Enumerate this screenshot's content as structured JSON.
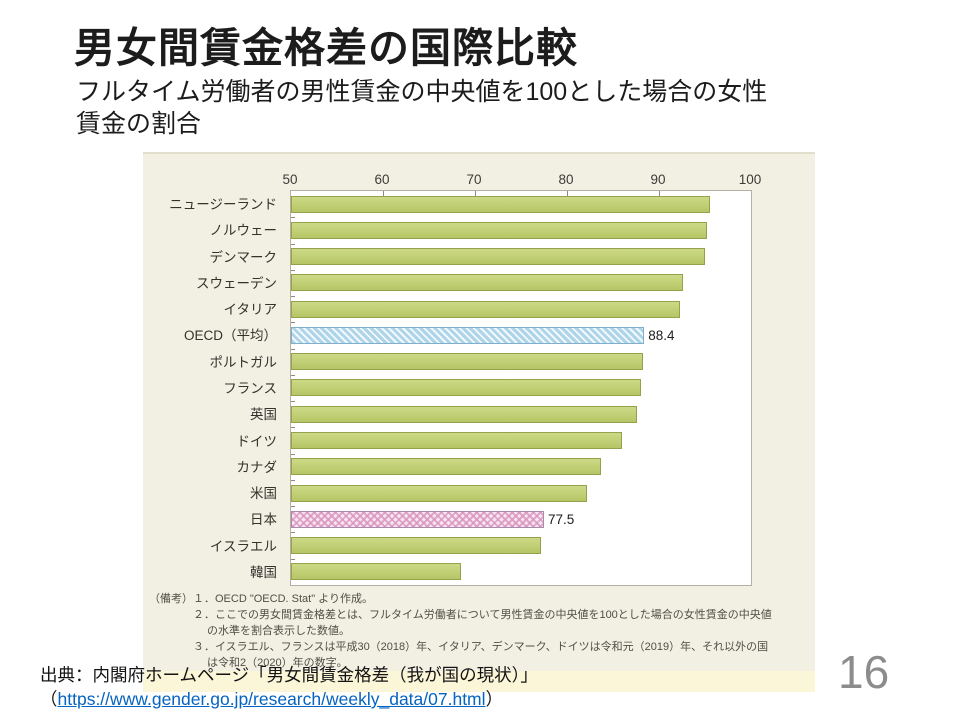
{
  "header": {
    "title": "男女間賃金格差の国際比較",
    "subtitle_line1": "フルタイム労働者の男性賃金の中央値を100とした場合の女性",
    "subtitle_line2": "賃金の割合"
  },
  "chart_data": {
    "type": "bar",
    "orientation": "horizontal",
    "title": "",
    "xlabel": "",
    "ylabel": "",
    "xlim": [
      50,
      100
    ],
    "x_ticks": [
      50,
      60,
      70,
      80,
      90,
      100
    ],
    "grid": false,
    "legend": "none",
    "items": [
      {
        "label": "ニュージーランド",
        "value": 95.5,
        "style": "default"
      },
      {
        "label": "ノルウェー",
        "value": 95.2,
        "style": "default"
      },
      {
        "label": "デンマーク",
        "value": 95.0,
        "style": "default"
      },
      {
        "label": "スウェーデン",
        "value": 92.6,
        "style": "default"
      },
      {
        "label": "イタリア",
        "value": 92.3,
        "style": "default"
      },
      {
        "label": "OECD（平均）",
        "value": 88.4,
        "style": "oecd",
        "value_label": "88.4"
      },
      {
        "label": "ポルトガル",
        "value": 88.3,
        "style": "default"
      },
      {
        "label": "フランス",
        "value": 88.0,
        "style": "default"
      },
      {
        "label": "英国",
        "value": 87.6,
        "style": "default"
      },
      {
        "label": "ドイツ",
        "value": 86.0,
        "style": "default"
      },
      {
        "label": "カナダ",
        "value": 83.7,
        "style": "default"
      },
      {
        "label": "米国",
        "value": 82.2,
        "style": "default"
      },
      {
        "label": "日本",
        "value": 77.5,
        "style": "japan",
        "value_label": "77.5"
      },
      {
        "label": "イスラエル",
        "value": 77.2,
        "style": "default"
      },
      {
        "label": "韓国",
        "value": 68.5,
        "style": "default"
      }
    ],
    "notes": [
      {
        "level": 0,
        "text": "（備考）１．OECD \"OECD. Stat\" より作成。"
      },
      {
        "level": 1,
        "text": "２．ここでの男女間賃金格差とは、フルタイム労働者について男性賃金の中央値を100とした場合の女性賃金の中央値"
      },
      {
        "level": 2,
        "text": "の水準を割合表示した数値。"
      },
      {
        "level": 1,
        "text": "３．イスラエル、フランスは平成30（2018）年、イタリア、デンマーク、ドイツは令和元（2019）年、それ以外の国"
      },
      {
        "level": 2,
        "text": "は令和2（2020）年の数字。"
      }
    ],
    "colors": {
      "bar_default": "#c0cf74",
      "bar_default_border": "#96a149",
      "bar_oecd": "#aed4e9",
      "bar_oecd_border": "#7fafcc",
      "bar_japan": "#e9c2da",
      "bar_japan_border": "#a98cab",
      "chart_background": "#f2efe3",
      "plot_background": "#ffffff"
    }
  },
  "footer": {
    "source_line1": "出典：内閣府ホームページ「男女間賃金格差（我が国の現状）」",
    "source_open_paren": "（",
    "source_url": "https://www.gender.go.jp/research/weekly_data/07.html",
    "source_close_paren": "）",
    "page_number": "16"
  }
}
